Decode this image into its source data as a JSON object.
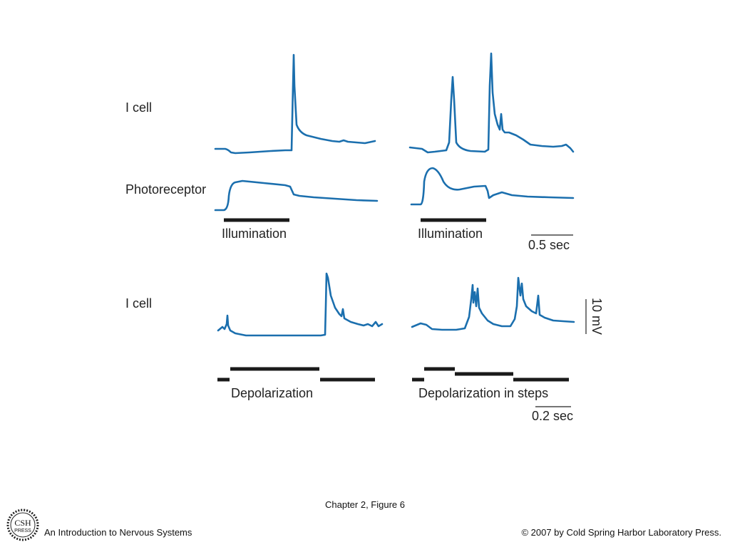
{
  "row_labels": {
    "i_cell_top": "I cell",
    "photoreceptor": "Photoreceptor",
    "i_cell_bottom": "I cell"
  },
  "stimulus_labels": {
    "illumination_left": "Illumination",
    "illumination_right": "Illumination",
    "depolarization": "Depolarization",
    "depolarization_steps": "Depolarization in steps"
  },
  "scale_bars": {
    "time_top": "0.5 sec",
    "time_bottom": "0.2 sec",
    "voltage": "10 mV"
  },
  "colors": {
    "trace": "#1b6fae",
    "stimulus_bar": "#1a1a1a"
  },
  "footer": {
    "figure_caption": "Chapter 2, Figure 6",
    "book_title": "An Introduction to Nervous Systems",
    "copyright": "© 2007 by Cold Spring Harbor Laboratory Press.",
    "logo_line1": "CSH",
    "logo_line2": "PRESS"
  }
}
